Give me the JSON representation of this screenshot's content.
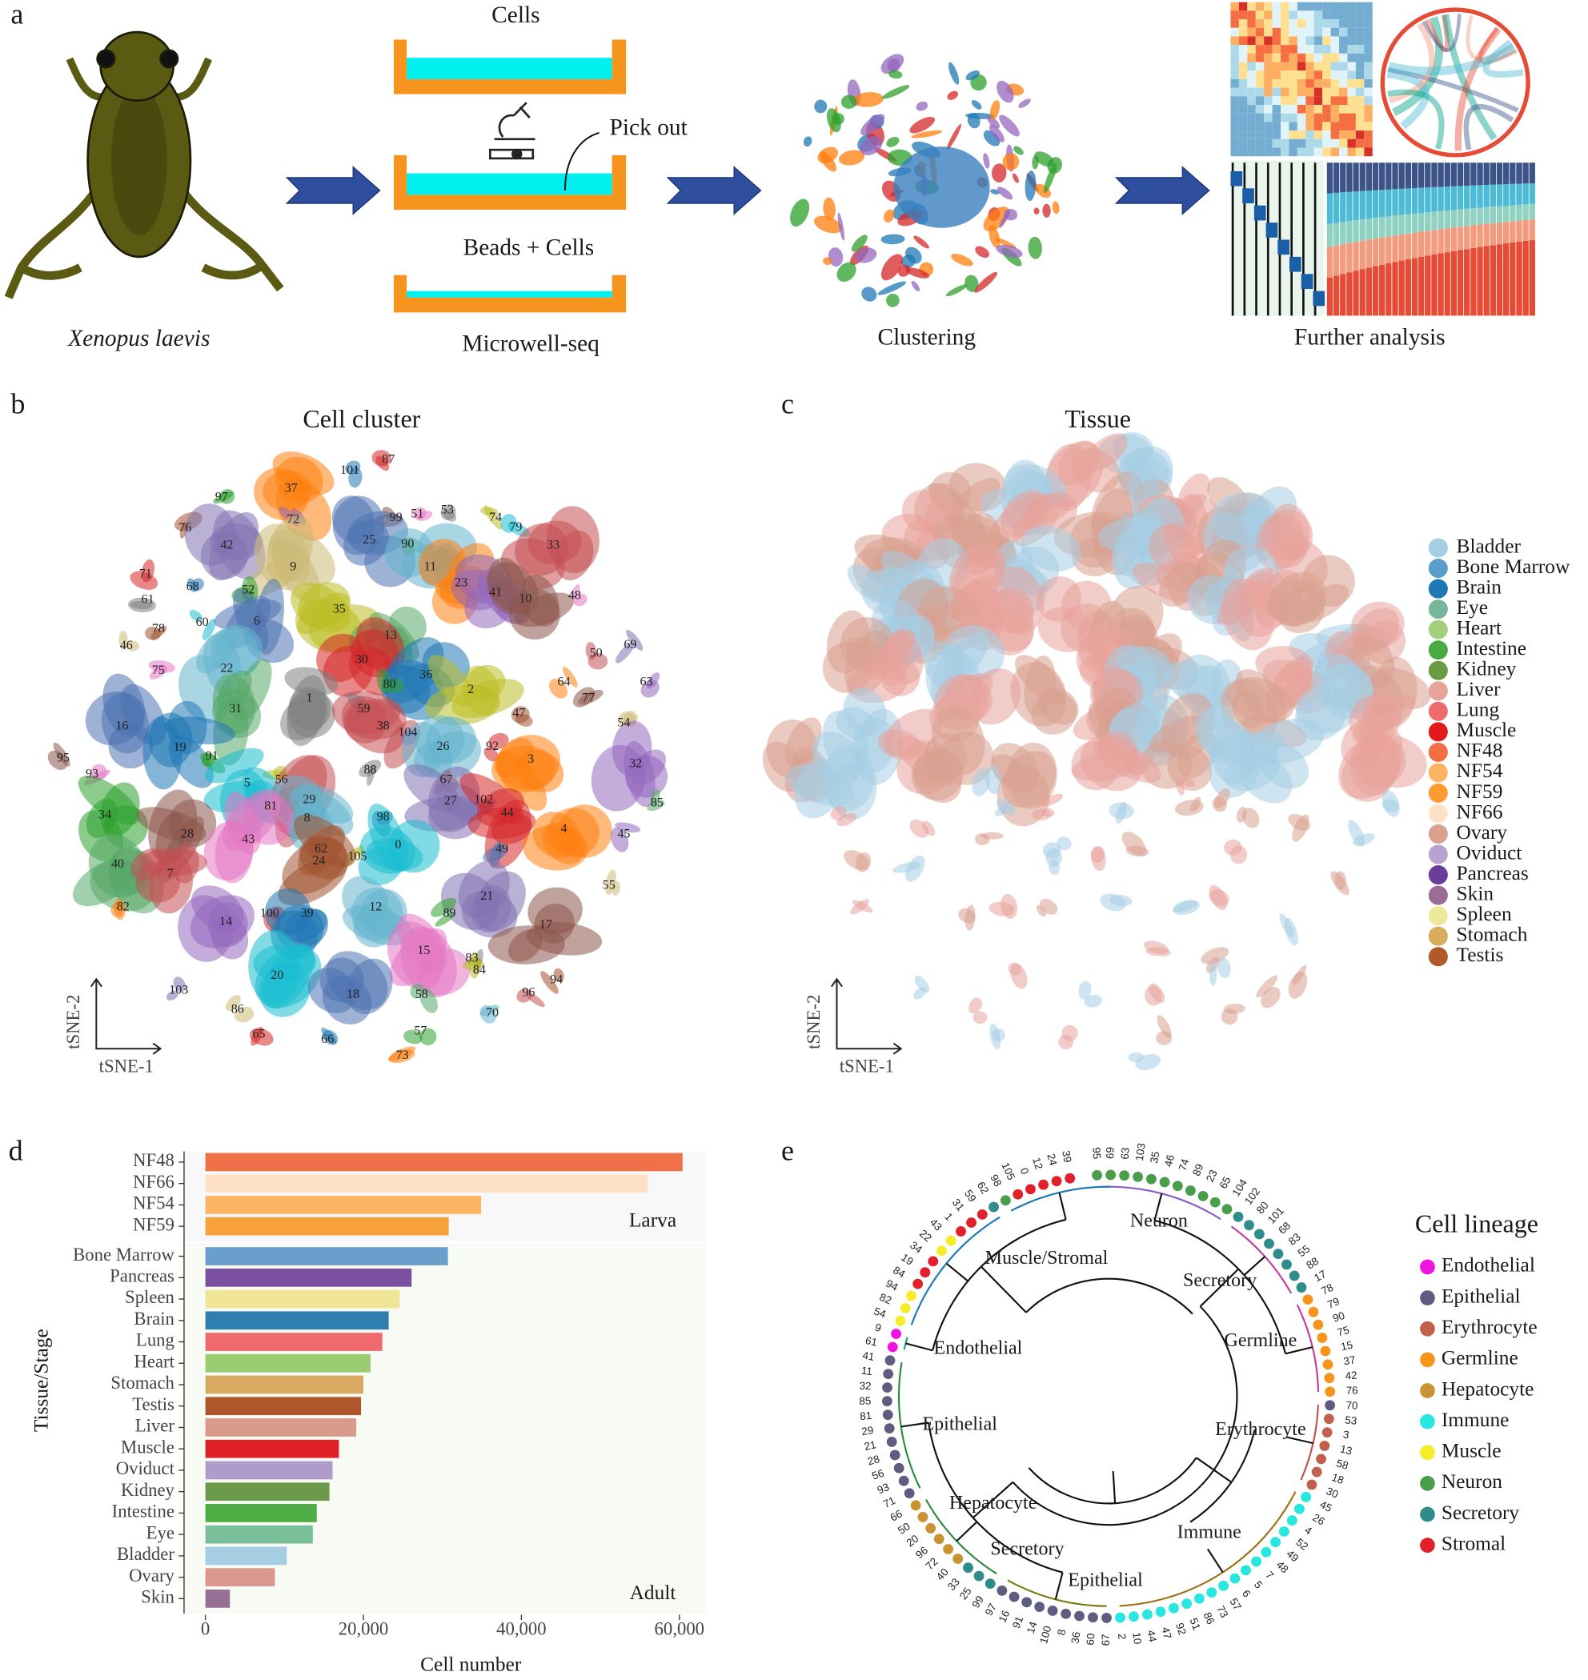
{
  "panel_labels": [
    "a",
    "b",
    "c",
    "d",
    "e"
  ],
  "panel_a": {
    "species": "Xenopus laevis",
    "well_labels": [
      "Cells",
      "Pick out",
      "Beads + Cells",
      "Microwell-seq"
    ],
    "step_labels": [
      "Clustering",
      "Further analysis"
    ]
  },
  "panel_b": {
    "title": "Cell cluster",
    "x_axis": "tSNE-1",
    "y_axis": "tSNE-2",
    "cluster_labels": [
      "87",
      "101",
      "97",
      "37",
      "72",
      "99",
      "51",
      "53",
      "74",
      "79",
      "76",
      "25",
      "90",
      "33",
      "42",
      "9",
      "11",
      "71",
      "68",
      "52",
      "23",
      "41",
      "10",
      "48",
      "61",
      "35",
      "60",
      "78",
      "6",
      "13",
      "50",
      "69",
      "46",
      "22",
      "30",
      "36",
      "80",
      "64",
      "63",
      "77",
      "75",
      "1",
      "2",
      "59",
      "47",
      "16",
      "31",
      "38",
      "104",
      "54",
      "26",
      "92",
      "19",
      "91",
      "3",
      "32",
      "95",
      "93",
      "88",
      "56",
      "5",
      "67",
      "102",
      "85",
      "29",
      "27",
      "81",
      "8",
      "44",
      "98",
      "34",
      "4",
      "45",
      "28",
      "43",
      "62",
      "105",
      "0",
      "24",
      "49",
      "40",
      "7",
      "21",
      "55",
      "12",
      "100",
      "39",
      "89",
      "82",
      "14",
      "17",
      "15",
      "83",
      "84",
      "20",
      "94",
      "18",
      "58",
      "96",
      "103",
      "86",
      "70",
      "65",
      "66",
      "57",
      "73"
    ]
  },
  "panel_c": {
    "title": "Tissue",
    "x_axis": "tSNE-1",
    "y_axis": "tSNE-2",
    "legend": [
      {
        "name": "Bladder",
        "color": "#a6cee3"
      },
      {
        "name": "Bone Marrow",
        "color": "#5a9dcd"
      },
      {
        "name": "Brain",
        "color": "#1f78b4"
      },
      {
        "name": "Eye",
        "color": "#76b79a"
      },
      {
        "name": "Heart",
        "color": "#a4d07d"
      },
      {
        "name": "Intestine",
        "color": "#4aaa42"
      },
      {
        "name": "Kidney",
        "color": "#6b9a45"
      },
      {
        "name": "Liver",
        "color": "#e8a39a"
      },
      {
        "name": "Lung",
        "color": "#ee6a6c"
      },
      {
        "name": "Muscle",
        "color": "#e31a1c"
      },
      {
        "name": "NF48",
        "color": "#f36e43"
      },
      {
        "name": "NF54",
        "color": "#fdb462"
      },
      {
        "name": "NF59",
        "color": "#fd9b30"
      },
      {
        "name": "NF66",
        "color": "#fde2c8"
      },
      {
        "name": "Ovary",
        "color": "#d9a090"
      },
      {
        "name": "Oviduct",
        "color": "#b9a2d0"
      },
      {
        "name": "Pancreas",
        "color": "#6a3d9a"
      },
      {
        "name": "Skin",
        "color": "#9a6d96"
      },
      {
        "name": "Spleen",
        "color": "#eee89a"
      },
      {
        "name": "Stomach",
        "color": "#d9ac5c"
      },
      {
        "name": "Testis",
        "color": "#b15928"
      }
    ]
  },
  "chart_data": {
    "type": "bar",
    "orientation": "horizontal",
    "x_label": "Cell number",
    "y_label": "Tissue/Stage",
    "groups": [
      {
        "name": "Larva",
        "categories": [
          "NF48",
          "NF66",
          "NF54",
          "NF59"
        ],
        "values": [
          60400,
          56000,
          34900,
          30800
        ],
        "colors": [
          "#f07048",
          "#fde0c5",
          "#fdb462",
          "#f6a13a"
        ]
      },
      {
        "name": "Adult",
        "categories": [
          "Bone Marrow",
          "Pancreas",
          "Spleen",
          "Brain",
          "Lung",
          "Heart",
          "Stomach",
          "Testis",
          "Liver",
          "Muscle",
          "Oviduct",
          "Kidney",
          "Intestine",
          "Eye",
          "Bladder",
          "Ovary",
          "Skin"
        ],
        "values": [
          30700,
          26100,
          24600,
          23200,
          22400,
          20900,
          20000,
          19700,
          19100,
          16900,
          16100,
          15700,
          14100,
          13600,
          10300,
          8800,
          3100
        ],
        "colors": [
          "#6a9fcb",
          "#7b50a0",
          "#efe594",
          "#2e7fb0",
          "#ee6a6c",
          "#99cc70",
          "#d8a960",
          "#b0562d",
          "#d89a8a",
          "#e02027",
          "#b09ccb",
          "#6b9a4a",
          "#4eae45",
          "#79bf9a",
          "#a6cee3",
          "#d9998e",
          "#977096"
        ]
      }
    ],
    "xlim": [
      -2700,
      63400
    ],
    "xticks": [
      0,
      {
        "value": 20000,
        "label": "20,000"
      },
      {
        "value": 40000,
        "label": "40,000"
      },
      {
        "value": 60000,
        "label": "60,000"
      }
    ]
  },
  "panel_e": {
    "legend_title": "Cell lineage",
    "legend": [
      {
        "name": "Endothelial",
        "color": "#f012e0"
      },
      {
        "name": "Epithelial",
        "color": "#5e5c80"
      },
      {
        "name": "Erythrocyte",
        "color": "#c0604d"
      },
      {
        "name": "Germline",
        "color": "#f7941d"
      },
      {
        "name": "Hepatocyte",
        "color": "#c89430"
      },
      {
        "name": "Immune",
        "color": "#28e6e0"
      },
      {
        "name": "Muscle",
        "color": "#f5ec2a"
      },
      {
        "name": "Neuron",
        "color": "#4a9e4a"
      },
      {
        "name": "Secretory",
        "color": "#2e8c8a"
      },
      {
        "name": "Stromal",
        "color": "#e0202a"
      }
    ],
    "clade_labels": [
      "Neuron",
      "Muscle/Stromal",
      "Secretory",
      "Germline",
      "Endothelial",
      "Epithelial",
      "Erythrocyte",
      "Hepatocyte",
      "Immune",
      "Secretory",
      "Epithelial"
    ],
    "leaves": [
      {
        "label": "95",
        "lineage": "Neuron"
      },
      {
        "label": "69",
        "lineage": "Neuron"
      },
      {
        "label": "63",
        "lineage": "Neuron"
      },
      {
        "label": "103",
        "lineage": "Neuron"
      },
      {
        "label": "35",
        "lineage": "Neuron"
      },
      {
        "label": "46",
        "lineage": "Neuron"
      },
      {
        "label": "74",
        "lineage": "Neuron"
      },
      {
        "label": "89",
        "lineage": "Neuron"
      },
      {
        "label": "23",
        "lineage": "Neuron"
      },
      {
        "label": "65",
        "lineage": "Neuron"
      },
      {
        "label": "104",
        "lineage": "Neuron"
      },
      {
        "label": "102",
        "lineage": "Secretory"
      },
      {
        "label": "80",
        "lineage": "Secretory"
      },
      {
        "label": "101",
        "lineage": "Secretory"
      },
      {
        "label": "68",
        "lineage": "Secretory"
      },
      {
        "label": "83",
        "lineage": "Secretory"
      },
      {
        "label": "55",
        "lineage": "Secretory"
      },
      {
        "label": "88",
        "lineage": "Secretory"
      },
      {
        "label": "17",
        "lineage": "Secretory"
      },
      {
        "label": "78",
        "lineage": "Germline"
      },
      {
        "label": "79",
        "lineage": "Germline"
      },
      {
        "label": "90",
        "lineage": "Germline"
      },
      {
        "label": "75",
        "lineage": "Germline"
      },
      {
        "label": "15",
        "lineage": "Germline"
      },
      {
        "label": "37",
        "lineage": "Germline"
      },
      {
        "label": "42",
        "lineage": "Germline"
      },
      {
        "label": "76",
        "lineage": "Germline"
      },
      {
        "label": "70",
        "lineage": "Epithelial"
      },
      {
        "label": "53",
        "lineage": "Erythrocyte"
      },
      {
        "label": "3",
        "lineage": "Erythrocyte"
      },
      {
        "label": "13",
        "lineage": "Erythrocyte"
      },
      {
        "label": "58",
        "lineage": "Erythrocyte"
      },
      {
        "label": "18",
        "lineage": "Erythrocyte"
      },
      {
        "label": "30",
        "lineage": "Erythrocyte"
      },
      {
        "label": "45",
        "lineage": "Immune"
      },
      {
        "label": "26",
        "lineage": "Immune"
      },
      {
        "label": "4",
        "lineage": "Immune"
      },
      {
        "label": "52",
        "lineage": "Immune"
      },
      {
        "label": "49",
        "lineage": "Immune"
      },
      {
        "label": "48",
        "lineage": "Immune"
      },
      {
        "label": "7",
        "lineage": "Immune"
      },
      {
        "label": "5",
        "lineage": "Immune"
      },
      {
        "label": "6",
        "lineage": "Immune"
      },
      {
        "label": "57",
        "lineage": "Immune"
      },
      {
        "label": "73",
        "lineage": "Immune"
      },
      {
        "label": "86",
        "lineage": "Immune"
      },
      {
        "label": "51",
        "lineage": "Immune"
      },
      {
        "label": "92",
        "lineage": "Immune"
      },
      {
        "label": "47",
        "lineage": "Immune"
      },
      {
        "label": "44",
        "lineage": "Immune"
      },
      {
        "label": "10",
        "lineage": "Immune"
      },
      {
        "label": "2",
        "lineage": "Immune"
      },
      {
        "label": "67",
        "lineage": "Epithelial"
      },
      {
        "label": "60",
        "lineage": "Epithelial"
      },
      {
        "label": "36",
        "lineage": "Epithelial"
      },
      {
        "label": "8",
        "lineage": "Epithelial"
      },
      {
        "label": "100",
        "lineage": "Epithelial"
      },
      {
        "label": "14",
        "lineage": "Epithelial"
      },
      {
        "label": "91",
        "lineage": "Epithelial"
      },
      {
        "label": "16",
        "lineage": "Epithelial"
      },
      {
        "label": "97",
        "lineage": "Epithelial"
      },
      {
        "label": "99",
        "lineage": "Secretory"
      },
      {
        "label": "25",
        "lineage": "Secretory"
      },
      {
        "label": "33",
        "lineage": "Secretory"
      },
      {
        "label": "40",
        "lineage": "Hepatocyte"
      },
      {
        "label": "72",
        "lineage": "Hepatocyte"
      },
      {
        "label": "96",
        "lineage": "Hepatocyte"
      },
      {
        "label": "20",
        "lineage": "Hepatocyte"
      },
      {
        "label": "50",
        "lineage": "Hepatocyte"
      },
      {
        "label": "66",
        "lineage": "Hepatocyte"
      },
      {
        "label": "71",
        "lineage": "Epithelial"
      },
      {
        "label": "93",
        "lineage": "Epithelial"
      },
      {
        "label": "56",
        "lineage": "Epithelial"
      },
      {
        "label": "28",
        "lineage": "Epithelial"
      },
      {
        "label": "21",
        "lineage": "Epithelial"
      },
      {
        "label": "29",
        "lineage": "Epithelial"
      },
      {
        "label": "81",
        "lineage": "Epithelial"
      },
      {
        "label": "85",
        "lineage": "Epithelial"
      },
      {
        "label": "32",
        "lineage": "Epithelial"
      },
      {
        "label": "11",
        "lineage": "Epithelial"
      },
      {
        "label": "41",
        "lineage": "Epithelial"
      },
      {
        "label": "61",
        "lineage": "Endothelial"
      },
      {
        "label": "9",
        "lineage": "Endothelial"
      },
      {
        "label": "54",
        "lineage": "Muscle"
      },
      {
        "label": "82",
        "lineage": "Muscle"
      },
      {
        "label": "94",
        "lineage": "Muscle"
      },
      {
        "label": "84",
        "lineage": "Stromal"
      },
      {
        "label": "19",
        "lineage": "Stromal"
      },
      {
        "label": "34",
        "lineage": "Stromal"
      },
      {
        "label": "22",
        "lineage": "Muscle"
      },
      {
        "label": "43",
        "lineage": "Muscle"
      },
      {
        "label": "1",
        "lineage": "Stromal"
      },
      {
        "label": "31",
        "lineage": "Stromal"
      },
      {
        "label": "59",
        "lineage": "Stromal"
      },
      {
        "label": "62",
        "lineage": "Secretory"
      },
      {
        "label": "98",
        "lineage": "Neuron"
      },
      {
        "label": "105",
        "lineage": "Stromal"
      },
      {
        "label": "0",
        "lineage": "Stromal"
      },
      {
        "label": "12",
        "lineage": "Stromal"
      },
      {
        "label": "24",
        "lineage": "Stromal"
      },
      {
        "label": "39",
        "lineage": "Stromal"
      }
    ]
  }
}
